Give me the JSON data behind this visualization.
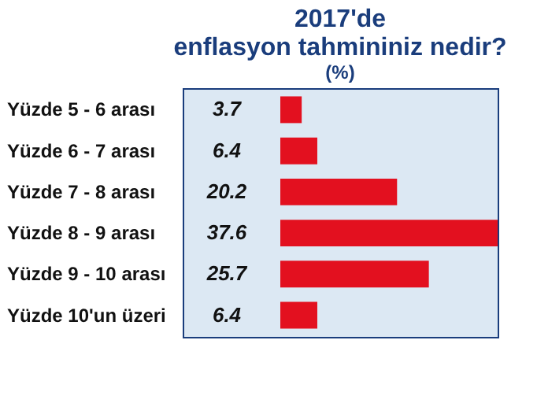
{
  "chart_data": {
    "type": "bar",
    "orientation": "horizontal",
    "title": [
      "2017'de",
      "enflasyon tahmininiz nedir?"
    ],
    "subtitle": "(%)",
    "categories": [
      "Yüzde 5 - 6 arası",
      "Yüzde 6 - 7 arası",
      "Yüzde 7 - 8 arası",
      "Yüzde 8 - 9 arası",
      "Yüzde 9 - 10 arası",
      "Yüzde 10'un üzeri"
    ],
    "values": [
      3.7,
      6.4,
      20.2,
      37.6,
      25.7,
      6.4
    ],
    "color": "#e3101f",
    "data_labels": true
  }
}
